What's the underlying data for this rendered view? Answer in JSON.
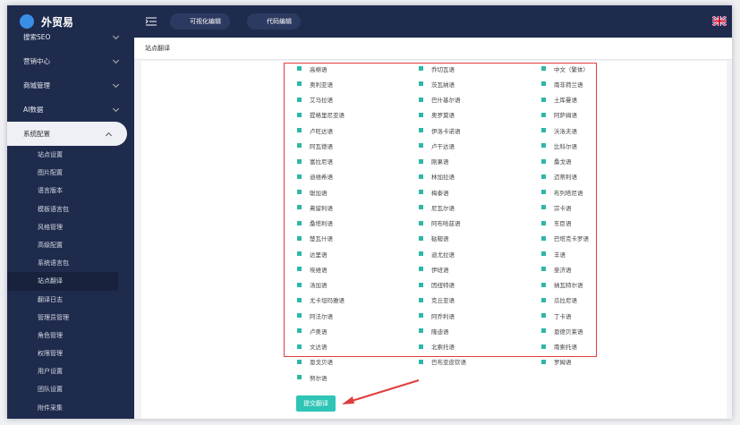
{
  "sidebar": {
    "logo": "外贸易",
    "menu": [
      "搜索SEO",
      "营销中心",
      "商城管理",
      "AI数据",
      "系统配置"
    ],
    "submenu": [
      "站点设置",
      "图片配置",
      "语言版本",
      "模板语言包",
      "风格管理",
      "高级配置",
      "系统语言包",
      "站点翻译",
      "翻译日志",
      "管理员管理",
      "角色管理",
      "权限管理",
      "用户设置",
      "团队设置",
      "附件采集"
    ]
  },
  "topbar": {
    "buttons": [
      "可视化编辑",
      "代码编辑"
    ]
  },
  "breadcrumb": "站点翻译",
  "languages": [
    "高棉语",
    "乔切瓦语",
    "中文（繁体）",
    "奥利亚语",
    "茨瓦纳语",
    "南非荷兰语",
    "艾马拉语",
    "巴什基尔语",
    "土库曼语",
    "提格里尼亚语",
    "奥罗莫语",
    "阿萨姆语",
    "卢旺达语",
    "伊洛卡诺语",
    "沃洛夫语",
    "阿瓦德语",
    "卢干达语",
    "比科尔语",
    "富拉尼语",
    "刚果语",
    "桑戈语",
    "迪维希语",
    "林加拉语",
    "迈蒂利语",
    "聪加语",
    "梅泰语",
    "布列塔尼语",
    "弗留利语",
    "尼瓦尔语",
    "宗卡语",
    "桑塔利语",
    "阿布哈兹语",
    "东臣语",
    "楚瓦什语",
    "鞑靼语",
    "巴塔克卡罗语",
    "达里语",
    "迪尤拉语",
    "丰语",
    "埃维语",
    "伊班语",
    "斐济语",
    "汤加语",
    "因纽特语",
    "纳瓦特尔语",
    "尤卡坦玛雅语",
    "克丘亚语",
    "瓜拉尼语",
    "阿法尔语",
    "阿乔利语",
    "丁卡语",
    "卢奥语",
    "隆迪语",
    "恩德贝莱语",
    "文达语",
    "北索托语",
    "南索托语",
    "恩戈贝语",
    "巴布亚皮钦语",
    "罗姆语",
    "努尔语"
  ],
  "submit_button": "提交翻译"
}
